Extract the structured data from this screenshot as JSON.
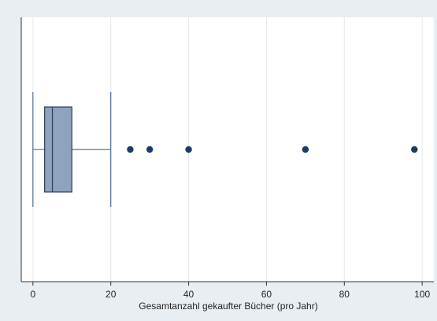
{
  "chart_data": {
    "type": "boxplot",
    "orientation": "horizontal",
    "xlabel": "Gesamtanzahl gekaufter Bücher (pro Jahr)",
    "xlim": [
      -3,
      103
    ],
    "xticks": [
      0,
      20,
      40,
      60,
      80,
      100
    ],
    "grid": true,
    "legend": "none",
    "box": {
      "whisker_low": 0,
      "q1": 3,
      "median": 5,
      "q3": 10,
      "whisker_high": 20
    },
    "outliers": [
      25,
      30,
      40,
      70,
      98
    ],
    "colors": {
      "background": "#e9eef2",
      "plot_area": "#ffffff",
      "box_fill": "#8ea4be",
      "box_stroke": "#2c3e55",
      "whisker": "#4f6e94",
      "outlier": "#1d3b62",
      "grid": "#e4e8ec"
    }
  }
}
